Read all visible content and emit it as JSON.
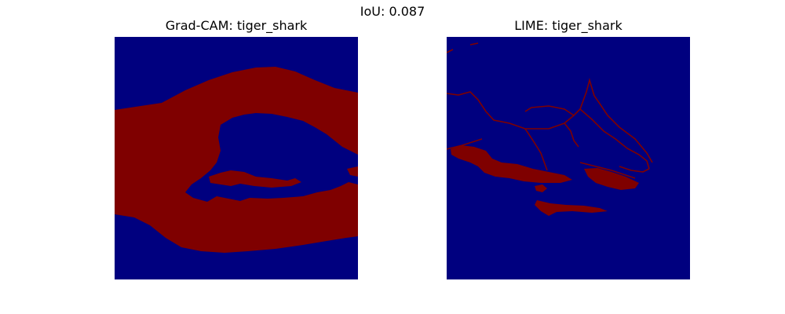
{
  "figure": {
    "suptitle": "IoU: 0.087"
  },
  "panels": [
    {
      "title": "Grad-CAM: tiger_shark"
    },
    {
      "title": "LIME: tiger_shark"
    }
  ],
  "colors": {
    "background_region": "#00007f",
    "highlight_region": "#7f0000",
    "figure_background": "#ffffff"
  }
}
